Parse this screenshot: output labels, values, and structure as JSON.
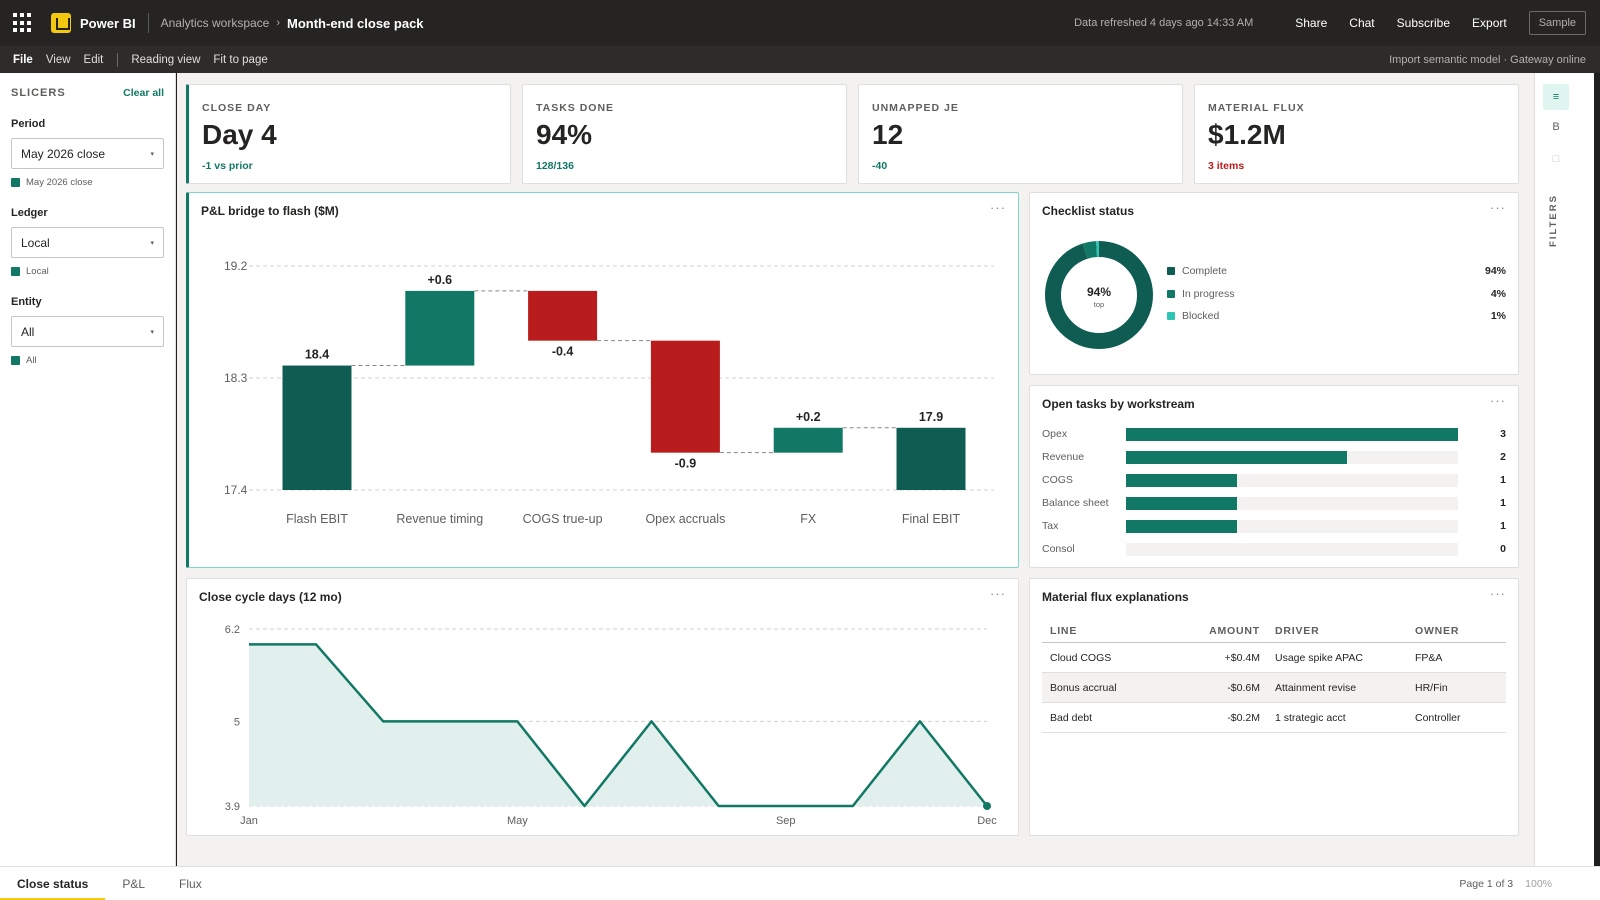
{
  "topbar": {
    "app_name": "Power BI",
    "workspace": "Analytics workspace",
    "report": "Month-end close pack",
    "refreshed": "Data refreshed 4 days ago 14:33 AM",
    "actions": [
      "Share",
      "Chat",
      "Subscribe",
      "Export"
    ],
    "sample": "Sample"
  },
  "menubar": {
    "items": [
      "File",
      "View",
      "Edit"
    ],
    "view_items": [
      "Reading view",
      "Fit to page"
    ],
    "status": "Import semantic model · Gateway online"
  },
  "slicers": {
    "title": "SLICERS",
    "clear_all": "Clear all",
    "items": [
      {
        "label": "Period",
        "value": "May 2026 close",
        "chip": "May 2026 close"
      },
      {
        "label": "Ledger",
        "value": "Local",
        "chip": "Local"
      },
      {
        "label": "Entity",
        "value": "All",
        "chip": "All"
      }
    ]
  },
  "kpis": [
    {
      "label": "CLOSE DAY",
      "value": "Day 4",
      "sub": "-1 vs prior",
      "tone": "pos"
    },
    {
      "label": "TASKS DONE",
      "value": "94%",
      "sub": "128/136",
      "tone": "pos"
    },
    {
      "label": "UNMAPPED JE",
      "value": "12",
      "sub": "-40",
      "tone": "pos"
    },
    {
      "label": "MATERIAL FLUX",
      "value": "$1.2M",
      "sub": "3 items",
      "tone": "neg"
    }
  ],
  "bridge": {
    "title": "P&L bridge to flash ($M)",
    "menu": "···"
  },
  "checklist": {
    "title": "Checklist status",
    "menu": "···",
    "center_value": "94%",
    "center_label": "top",
    "legend": [
      {
        "name": "Complete",
        "pct": "94%",
        "color": "#0f5c52"
      },
      {
        "name": "In progress",
        "pct": "4%",
        "color": "#117865"
      },
      {
        "name": "Blocked",
        "pct": "1%",
        "color": "#2ec4b6"
      }
    ]
  },
  "workstreams": {
    "title": "Open tasks by workstream",
    "menu": "···",
    "max": 3,
    "rows": [
      {
        "name": "Opex",
        "count": 3
      },
      {
        "name": "Revenue",
        "count": 2
      },
      {
        "name": "COGS",
        "count": 1
      },
      {
        "name": "Balance sheet",
        "count": 1
      },
      {
        "name": "Tax",
        "count": 1
      },
      {
        "name": "Consol",
        "count": 0
      }
    ]
  },
  "cycle": {
    "title": "Close cycle days (12 mo)",
    "menu": "···"
  },
  "flux": {
    "title": "Material flux explanations",
    "menu": "···",
    "headers": [
      "LINE",
      "AMOUNT",
      "DRIVER",
      "OWNER"
    ],
    "rows": [
      {
        "line": "Cloud COGS",
        "amount": "+$0.4M",
        "driver": "Usage spike APAC",
        "owner": "FP&A"
      },
      {
        "line": "Bonus accrual",
        "amount": "-$0.6M",
        "driver": "Attainment revise",
        "owner": "HR/Fin"
      },
      {
        "line": "Bad debt",
        "amount": "-$0.2M",
        "driver": "1 strategic acct",
        "owner": "Controller"
      }
    ]
  },
  "rail": {
    "buttons": [
      "≡",
      "B",
      "□"
    ],
    "filters": "FILTERS"
  },
  "pages": {
    "tabs": [
      "Close status",
      "P&L",
      "Flux"
    ],
    "active": 0,
    "page_info": "Page 1 of 3",
    "zoom": "100%"
  },
  "colors": {
    "teal_dark": "#0f5c52",
    "teal": "#117865",
    "red": "#b91c1c",
    "accent": "#f2c811"
  },
  "chart_data": [
    {
      "type": "waterfall",
      "title": "P&L bridge to flash ($M)",
      "categories": [
        "Flash EBIT",
        "Revenue timing",
        "COGS true-up",
        "Opex accruals",
        "FX",
        "Final EBIT"
      ],
      "values": [
        18.4,
        0.6,
        -0.4,
        -0.9,
        0.2,
        17.9
      ],
      "labels": [
        "18.4",
        "+0.6",
        "-0.4",
        "-0.9",
        "+0.2",
        "17.9"
      ],
      "kinds": [
        "total",
        "delta",
        "delta",
        "delta",
        "delta",
        "total"
      ],
      "yticks": [
        19.2,
        18.3,
        17.4
      ],
      "ylim": [
        17.4,
        19.2
      ],
      "grid": true
    },
    {
      "type": "area",
      "title": "Close cycle days (12 mo)",
      "x": [
        "Jan",
        "Feb",
        "Mar",
        "Apr",
        "May",
        "Jun",
        "Jul",
        "Aug",
        "Sep",
        "Oct",
        "Nov",
        "Dec"
      ],
      "xticks": [
        "Jan",
        "May",
        "Sep",
        "Dec"
      ],
      "values": [
        6.0,
        6.0,
        5.0,
        5.0,
        5.0,
        3.9,
        5.0,
        3.9,
        3.9,
        3.9,
        5.0,
        3.9
      ],
      "yticks": [
        6.2,
        5.0,
        3.9
      ],
      "ylim": [
        3.9,
        6.2
      ],
      "grid": true
    },
    {
      "type": "pie",
      "title": "Checklist status",
      "categories": [
        "Complete",
        "In progress",
        "Blocked"
      ],
      "values": [
        94,
        4,
        1
      ]
    },
    {
      "type": "bar",
      "title": "Open tasks by workstream",
      "categories": [
        "Opex",
        "Revenue",
        "COGS",
        "Balance sheet",
        "Tax",
        "Consol"
      ],
      "values": [
        3,
        2,
        1,
        1,
        1,
        0
      ]
    }
  ]
}
